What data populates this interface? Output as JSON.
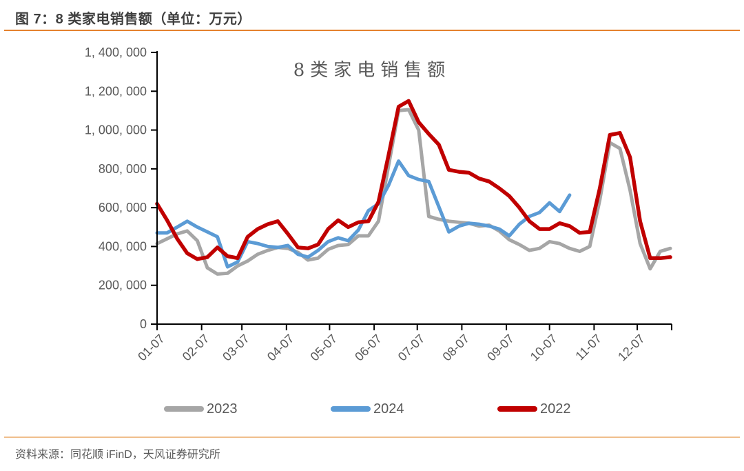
{
  "header": {
    "caption": "图 7：8 类家电销售额（单位：万元）"
  },
  "footer": {
    "source": "资料来源：同花顺 iFinD，天风证券研究所"
  },
  "colors": {
    "accent_rule": "#e5812e",
    "bottom_divider": "#f0be8c",
    "axis_line": "#000000",
    "tick_label": "#595959",
    "caption_text": "#3f3f3f",
    "chart_title_text": "#595959",
    "series_2023": "#a6a6a6",
    "series_2024": "#5b9bd5",
    "series_2022": "#c00000"
  },
  "chart_data": {
    "type": "line",
    "title": "8类家电销售额",
    "unit": "万元",
    "xlabel": "",
    "ylabel": "",
    "ylim": [
      0,
      1400000
    ],
    "grid": false,
    "legend_position": "bottom",
    "x": [
      "01-07",
      "01-14",
      "01-21",
      "01-28",
      "02-04",
      "02-11",
      "02-18",
      "02-25",
      "03-04",
      "03-11",
      "03-18",
      "03-25",
      "04-01",
      "04-08",
      "04-15",
      "04-22",
      "04-29",
      "05-06",
      "05-13",
      "05-20",
      "05-27",
      "06-03",
      "06-10",
      "06-17",
      "06-24",
      "07-01",
      "07-08",
      "07-15",
      "07-22",
      "07-29",
      "08-05",
      "08-12",
      "08-19",
      "08-26",
      "09-02",
      "09-09",
      "09-16",
      "09-23",
      "09-30",
      "10-07",
      "10-14",
      "10-21",
      "10-28",
      "11-04",
      "11-11",
      "11-18",
      "11-25",
      "12-02",
      "12-09",
      "12-16",
      "12-23",
      "12-30"
    ],
    "series": [
      {
        "name": "2023",
        "color": "#a6a6a6",
        "values": [
          415000,
          440000,
          465000,
          480000,
          430000,
          290000,
          258000,
          262000,
          300000,
          325000,
          360000,
          380000,
          395000,
          390000,
          370000,
          330000,
          340000,
          385000,
          405000,
          410000,
          455000,
          455000,
          530000,
          815000,
          1100000,
          1105000,
          1000000,
          555000,
          540000,
          530000,
          525000,
          520000,
          505000,
          510000,
          480000,
          435000,
          410000,
          380000,
          390000,
          425000,
          415000,
          390000,
          375000,
          400000,
          640000,
          935000,
          905000,
          690000,
          415000,
          285000,
          375000,
          390000
        ]
      },
      {
        "name": "2024",
        "color": "#5b9bd5",
        "values": [
          470000,
          470000,
          500000,
          530000,
          500000,
          475000,
          450000,
          295000,
          320000,
          425000,
          415000,
          400000,
          395000,
          405000,
          360000,
          345000,
          380000,
          425000,
          445000,
          430000,
          485000,
          585000,
          620000,
          715000,
          840000,
          765000,
          745000,
          735000,
          605000,
          475000,
          505000,
          520000,
          515000,
          505000,
          490000,
          455000,
          515000,
          555000,
          575000,
          625000,
          580000,
          665000
        ]
      },
      {
        "name": "2022",
        "color": "#c00000",
        "values": [
          620000,
          535000,
          440000,
          365000,
          335000,
          345000,
          395000,
          350000,
          340000,
          450000,
          490000,
          515000,
          530000,
          465000,
          395000,
          390000,
          410000,
          490000,
          535000,
          500000,
          525000,
          530000,
          630000,
          870000,
          1120000,
          1150000,
          1040000,
          980000,
          925000,
          795000,
          785000,
          780000,
          750000,
          735000,
          700000,
          660000,
          600000,
          530000,
          490000,
          490000,
          520000,
          505000,
          470000,
          475000,
          700000,
          975000,
          985000,
          860000,
          530000,
          340000,
          340000,
          345000
        ]
      }
    ],
    "y_ticks": [
      {
        "label": "0",
        "value": 0
      },
      {
        "label": "200, 000",
        "value": 200000
      },
      {
        "label": "400, 000",
        "value": 400000
      },
      {
        "label": "600, 000",
        "value": 600000
      },
      {
        "label": "800, 000",
        "value": 800000
      },
      {
        "label": "1, 000, 000",
        "value": 1000000
      },
      {
        "label": "1, 200, 000",
        "value": 1200000
      },
      {
        "label": "1, 400, 000",
        "value": 1400000
      }
    ],
    "x_ticks": [
      "01-07",
      "02-07",
      "03-07",
      "04-07",
      "05-07",
      "06-07",
      "07-07",
      "08-07",
      "09-07",
      "10-07",
      "11-07",
      "12-07"
    ]
  }
}
